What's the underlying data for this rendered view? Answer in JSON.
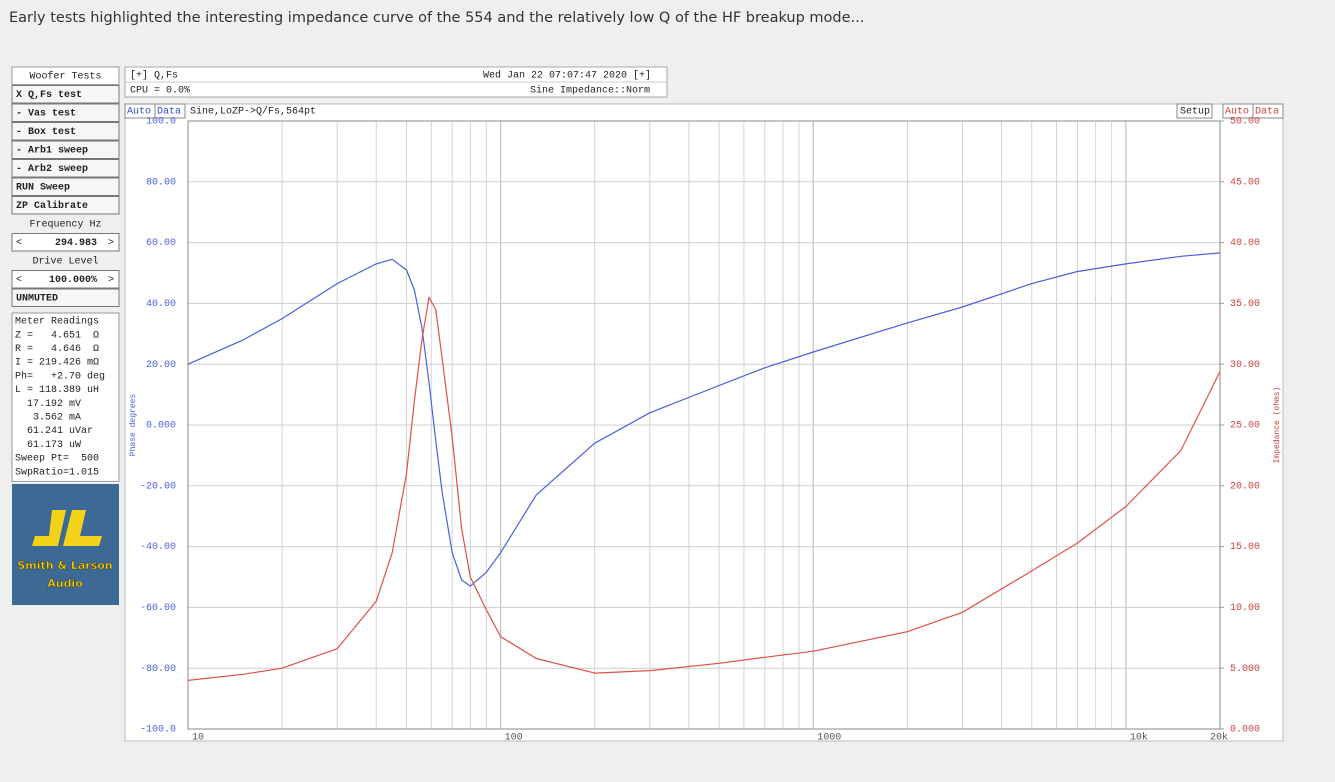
{
  "caption": "Early tests highlighted the interesting impedance curve of the 554 and the relatively low Q of the HF breakup mode...",
  "panel": {
    "title": "Woofer Tests",
    "buttons": [
      "X Q,Fs test",
      "- Vas test",
      "- Box test",
      "- Arb1 sweep",
      "- Arb2 sweep",
      "RUN Sweep",
      "ZP Calibrate"
    ],
    "frequency": {
      "label": "Frequency Hz",
      "decrement": "<",
      "value": "294.983",
      "increment": ">"
    },
    "drive": {
      "label": "Drive Level",
      "decrement": "<",
      "value": "100.000%",
      "increment": ">"
    },
    "mute": "UNMUTED",
    "meter": {
      "title": "Meter Readings",
      "lines": [
        "Z =   4.651  Ω",
        "R =   4.646  Ω",
        "I = 219.426 mΩ",
        "Ph=   +2.70 deg",
        "L = 118.389 uH",
        "  17.192 mV",
        "   3.562 mA",
        "  61.241 uVar",
        "  61.173 uW",
        "Sweep Pt=  500",
        "SwpRatio=1.015"
      ]
    },
    "logo": [
      "Smith & Larson",
      "Audio"
    ]
  },
  "header": {
    "left_top": "[+] Q,Fs",
    "left_bottom": "CPU = 0.0%",
    "right_top": "Wed Jan 22 07:07:47 2020 [+]",
    "right_bottom": "Sine Impedance::Norm"
  },
  "toolbar": {
    "left_auto": "Auto",
    "left_data": "Data",
    "info": "Sine,LoZP->Q/Fs,564pt",
    "setup": "Setup",
    "right_auto": "Auto",
    "right_data": "Data"
  },
  "chart_data": {
    "type": "line",
    "xscale": "log",
    "grid": true,
    "ylabel": "Phase degrees",
    "y2label": "Impedance (ohms)",
    "xlim": [
      10,
      20000
    ],
    "xticks": [
      10,
      100,
      1000,
      {
        "value": 10000,
        "label": "10k"
      },
      {
        "value": 20000,
        "label": "20k"
      }
    ],
    "ylim": [
      -100,
      100
    ],
    "yticks": [
      {
        "value": -100,
        "label": "-100.0"
      },
      {
        "value": -80,
        "label": "-80.00"
      },
      {
        "value": -60,
        "label": "-60.00"
      },
      {
        "value": -40,
        "label": "-40.00"
      },
      {
        "value": -20,
        "label": "-20.00"
      },
      {
        "value": 0,
        "label": "0.000"
      },
      {
        "value": 20,
        "label": "20.00"
      },
      {
        "value": 40,
        "label": "40.00"
      },
      {
        "value": 60,
        "label": "60.00"
      },
      {
        "value": 80,
        "label": "80.00"
      },
      {
        "value": 100,
        "label": "100.0"
      }
    ],
    "y2lim": [
      0,
      50
    ],
    "y2ticks": [
      {
        "value": 0,
        "label": "0.000"
      },
      {
        "value": 5,
        "label": "5.000"
      },
      {
        "value": 10,
        "label": "10.00"
      },
      {
        "value": 15,
        "label": "15.00"
      },
      {
        "value": 20,
        "label": "20.00"
      },
      {
        "value": 25,
        "label": "25.00"
      },
      {
        "value": 30,
        "label": "30.00"
      },
      {
        "value": 35,
        "label": "35.00"
      },
      {
        "value": 40,
        "label": "40.00"
      },
      {
        "value": 45,
        "label": "45.00"
      },
      {
        "value": 50,
        "label": "50.00"
      }
    ],
    "x": [
      10,
      15,
      20,
      30,
      40,
      45,
      50,
      53,
      56,
      59,
      62,
      65,
      70,
      75,
      80,
      90,
      100,
      130,
      200,
      300,
      500,
      700,
      1000,
      2000,
      3000,
      5000,
      7000,
      10000,
      15000,
      20000
    ],
    "series": [
      {
        "color": "#4a5ee0",
        "axis": "y",
        "values": [
          20,
          28,
          35,
          46.5,
          53,
          54.5,
          51,
          44.4,
          32,
          14,
          -5,
          -22,
          -42,
          -51,
          -53,
          -48.5,
          -42,
          -23,
          -6,
          4,
          13,
          18.8,
          24,
          33.6,
          38.8,
          46.5,
          50.5,
          53,
          55.5,
          56.6
        ]
      },
      {
        "color": "#e0504a",
        "axis": "y2",
        "values": [
          4.0,
          4.5,
          5.0,
          6.6,
          10.5,
          14.5,
          21,
          27,
          32,
          35.5,
          34.5,
          30.5,
          24,
          16.5,
          12.5,
          9.8,
          7.6,
          5.8,
          4.6,
          4.8,
          5.4,
          5.9,
          6.4,
          8.0,
          9.6,
          13,
          15.3,
          18.3,
          22.9,
          29.4
        ]
      }
    ]
  }
}
